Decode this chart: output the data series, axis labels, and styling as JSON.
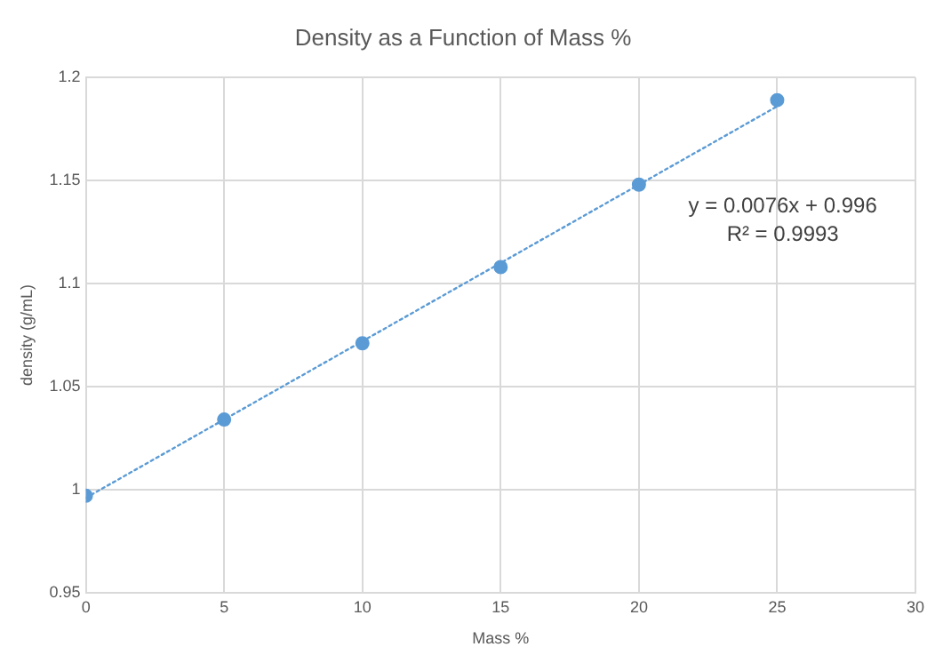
{
  "chart_data": {
    "type": "scatter",
    "title": "Density as a Function of Mass %",
    "xlabel": "Mass %",
    "ylabel": "density (g/mL)",
    "xlim": [
      0,
      30
    ],
    "xticks": [
      0,
      5,
      10,
      15,
      20,
      25,
      30
    ],
    "ylim": [
      0.95,
      1.2
    ],
    "yticks": [
      0.95,
      1,
      1.05,
      1.1,
      1.15,
      1.2
    ],
    "grid": true,
    "series": [
      {
        "color": "#5b9bd5",
        "marker": "circle",
        "x": [
          0,
          5,
          10,
          15,
          20,
          25
        ],
        "values": [
          0.997,
          1.034,
          1.071,
          1.108,
          1.148,
          1.189
        ]
      },
      {
        "type": "line",
        "color": "#5b9bd5",
        "marker": "none",
        "line_style": "dotted",
        "x": [
          0,
          25
        ],
        "values": [
          0.996,
          1.186
        ]
      }
    ],
    "annotations": [
      "y = 0.0076x + 0.996",
      "R² = 0.9993"
    ]
  }
}
